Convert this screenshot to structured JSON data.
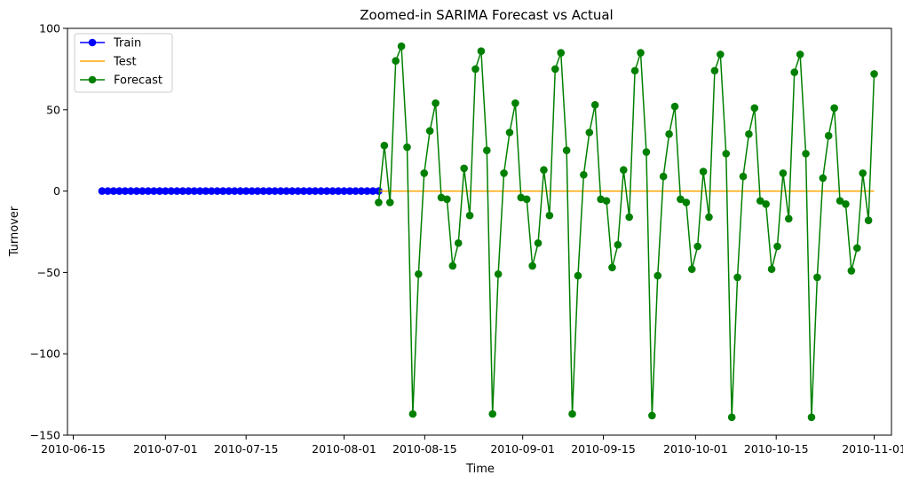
{
  "chart_data": {
    "type": "line",
    "title": "Zoomed-in SARIMA Forecast vs Actual",
    "xlabel": "Time",
    "ylabel": "Turnover",
    "ylim": [
      -150,
      100
    ],
    "xlim": [
      "2010-06-14",
      "2010-11-04"
    ],
    "x_ticks": [
      "2010-06-15",
      "2010-07-01",
      "2010-07-15",
      "2010-08-01",
      "2010-08-15",
      "2010-09-01",
      "2010-09-15",
      "2010-10-01",
      "2010-10-15",
      "2010-11-01"
    ],
    "y_ticks": [
      100,
      50,
      0,
      -50,
      -100,
      -150
    ],
    "legend_position": "top-left",
    "series": [
      {
        "name": "Train",
        "color": "#0000ff",
        "marker": "circle",
        "start_date": "2010-06-20",
        "end_date": "2010-08-07",
        "values": [
          0,
          0,
          0,
          0,
          0,
          0,
          0,
          0,
          0,
          0,
          0,
          0,
          0,
          0,
          0,
          0,
          0,
          0,
          0,
          0,
          0,
          0,
          0,
          0,
          0,
          0,
          0,
          0,
          0,
          0,
          0,
          0,
          0,
          0,
          0,
          0,
          0,
          0,
          0,
          0,
          0,
          0,
          0,
          0,
          0,
          0,
          0,
          0,
          0
        ]
      },
      {
        "name": "Test",
        "color": "#ffa500",
        "marker": "none",
        "start_date": "2010-08-07",
        "end_date": "2010-11-01",
        "values": [
          0,
          0
        ]
      },
      {
        "name": "Forecast",
        "color": "#008000",
        "marker": "circle",
        "start_date": "2010-08-07",
        "end_date": "2010-11-01",
        "values": [
          -7,
          28,
          -7,
          80,
          89,
          27,
          -137,
          -51,
          11,
          37,
          54,
          -4,
          -5,
          -46,
          -32,
          14,
          -15,
          75,
          86,
          25,
          -137,
          -51,
          11,
          36,
          54,
          -4,
          -5,
          -46,
          -32,
          13,
          -15,
          75,
          85,
          25,
          -137,
          -52,
          10,
          36,
          53,
          -5,
          -6,
          -47,
          -33,
          13,
          -16,
          74,
          85,
          24,
          -138,
          -52,
          9,
          35,
          52,
          -5,
          -7,
          -48,
          -34,
          12,
          -16,
          74,
          84,
          23,
          -139,
          -53,
          9,
          35,
          51,
          -6,
          -8,
          -48,
          -34,
          11,
          -17,
          73,
          84,
          23,
          -139,
          -53,
          8,
          34,
          51,
          -6,
          -8,
          -49,
          -35,
          11,
          -18,
          72
        ]
      }
    ]
  }
}
